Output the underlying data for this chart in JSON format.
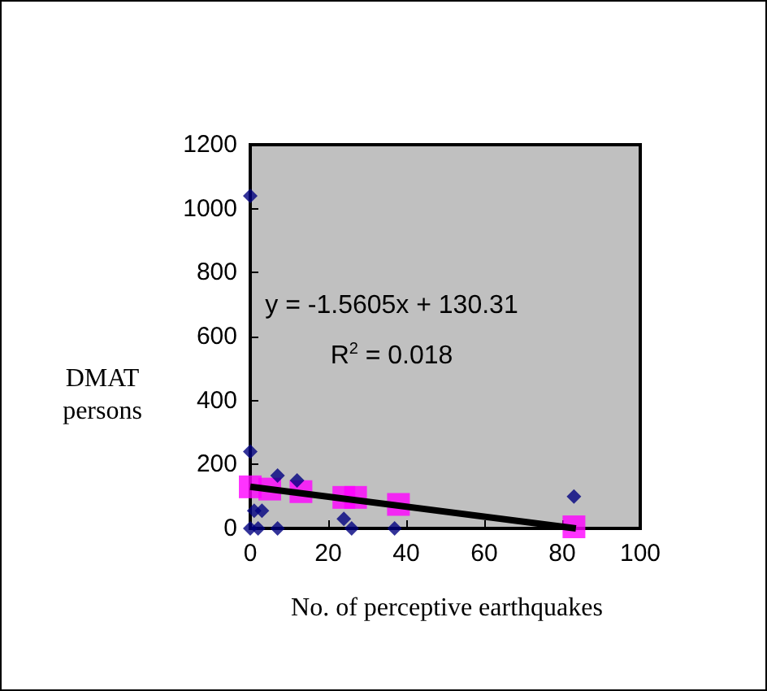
{
  "chart_data": {
    "type": "scatter",
    "xlabel": "No. of perceptive earthquakes",
    "ylabel": "DMAT\npersons",
    "xlim": [
      0,
      100
    ],
    "xticks": [
      0,
      20,
      40,
      60,
      80,
      100
    ],
    "ylim": [
      0,
      1200
    ],
    "yticks": [
      0,
      200,
      400,
      600,
      800,
      1000,
      1200
    ],
    "grid": false,
    "annotations": [
      "y = -1.5605x + 130.31",
      "R$^{2}$ = 0.018"
    ],
    "series": [
      {
        "marker": "diamond",
        "color": "#000080",
        "x": [
          0,
          2,
          7,
          24,
          26,
          37,
          0,
          0,
          1,
          3,
          7,
          12,
          83
        ],
        "values": [
          0,
          0,
          0,
          30,
          0,
          0,
          1040,
          240,
          55,
          55,
          165,
          150,
          100
        ]
      },
      {
        "marker": "square",
        "color": "#ff00ff",
        "x": [
          0,
          5,
          13,
          24,
          27,
          38,
          83
        ],
        "values": [
          130,
          123,
          115,
          97,
          97,
          75,
          5
        ]
      },
      {
        "type": "line",
        "marker": "none",
        "color": "#000000",
        "x": [
          0,
          83.5
        ],
        "values": [
          130.31,
          0
        ]
      }
    ]
  }
}
